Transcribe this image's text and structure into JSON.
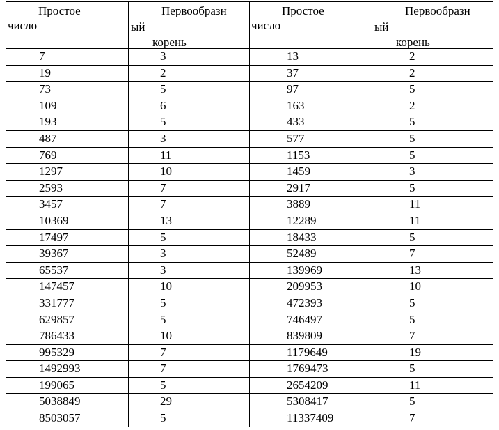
{
  "header": {
    "prime_line1": "Простое",
    "prime_line2": "число",
    "root_line1": "Первообразн",
    "root_line2": "ый",
    "root_line3": "корень"
  },
  "rows": [
    {
      "p1": "7",
      "r1": "3",
      "p2": "13",
      "r2": "2"
    },
    {
      "p1": "19",
      "r1": "2",
      "p2": "37",
      "r2": "2"
    },
    {
      "p1": "73",
      "r1": "5",
      "p2": "97",
      "r2": "5"
    },
    {
      "p1": "109",
      "r1": "6",
      "p2": "163",
      "r2": "2"
    },
    {
      "p1": "193",
      "r1": "5",
      "p2": "433",
      "r2": "5"
    },
    {
      "p1": "487",
      "r1": "3",
      "p2": "577",
      "r2": "5"
    },
    {
      "p1": "769",
      "r1": "11",
      "p2": "1153",
      "r2": "5"
    },
    {
      "p1": "1297",
      "r1": "10",
      "p2": "1459",
      "r2": "3"
    },
    {
      "p1": "2593",
      "r1": "7",
      "p2": "2917",
      "r2": "5"
    },
    {
      "p1": "3457",
      "r1": "7",
      "p2": "3889",
      "r2": "11"
    },
    {
      "p1": "10369",
      "r1": "13",
      "p2": "12289",
      "r2": "11"
    },
    {
      "p1": "17497",
      "r1": "5",
      "p2": "18433",
      "r2": "5"
    },
    {
      "p1": "39367",
      "r1": "3",
      "p2": "52489",
      "r2": "7"
    },
    {
      "p1": "65537",
      "r1": "3",
      "p2": "139969",
      "r2": "13"
    },
    {
      "p1": "147457",
      "r1": "10",
      "p2": "209953",
      "r2": "10"
    },
    {
      "p1": "331777",
      "r1": "5",
      "p2": "472393",
      "r2": "5"
    },
    {
      "p1": "629857",
      "r1": "5",
      "p2": "746497",
      "r2": "5"
    },
    {
      "p1": "786433",
      "r1": "10",
      "p2": "839809",
      "r2": "7"
    },
    {
      "p1": "995329",
      "r1": "7",
      "p2": "1179649",
      "r2": "19"
    },
    {
      "p1": "1492993",
      "r1": "7",
      "p2": "1769473",
      "r2": "5"
    },
    {
      "p1": "199065",
      "r1": "5",
      "p2": "2654209",
      "r2": "11"
    },
    {
      "p1": "5038849",
      "r1": "29",
      "p2": "5308417",
      "r2": "5"
    },
    {
      "p1": "8503057",
      "r1": "5",
      "p2": "11337409",
      "r2": "7"
    }
  ]
}
